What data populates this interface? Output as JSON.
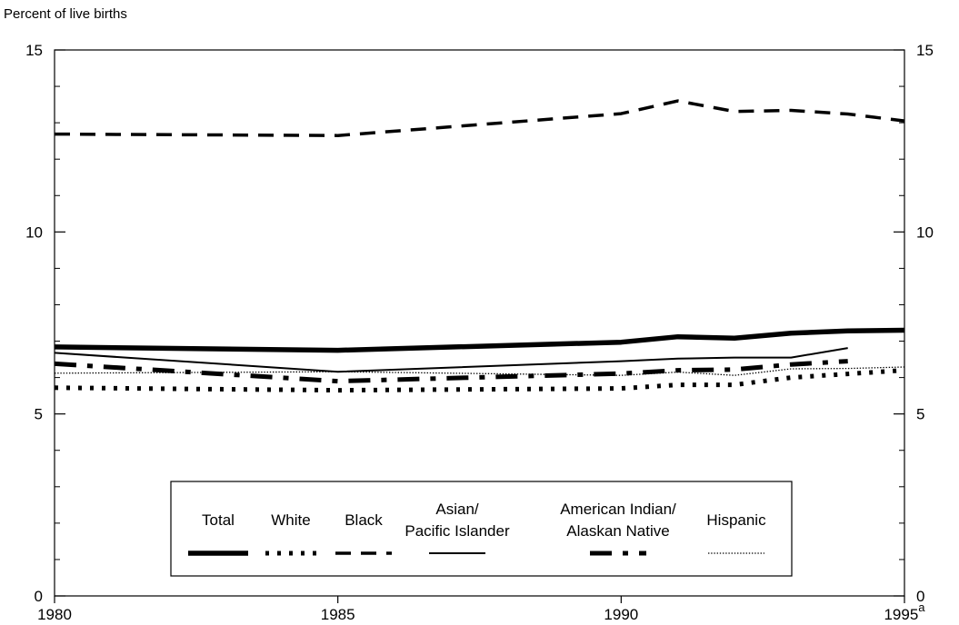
{
  "chart_data": {
    "type": "line",
    "title": "",
    "ylabel": "Percent of live births",
    "xlabel": "",
    "xlim": [
      1980,
      1995
    ],
    "ylim": [
      0,
      15
    ],
    "x_ticks": [
      {
        "value": 1980,
        "label": "1980"
      },
      {
        "value": 1985,
        "label": "1985"
      },
      {
        "value": 1990,
        "label": "1990"
      },
      {
        "value": 1995,
        "label": "1995",
        "superscript": "a"
      }
    ],
    "y_ticks": [
      {
        "value": 0,
        "label": "0"
      },
      {
        "value": 5,
        "label": "5"
      },
      {
        "value": 10,
        "label": "10"
      },
      {
        "value": 15,
        "label": "15"
      }
    ],
    "grid": false,
    "legend_position": "bottom-center",
    "series": [
      {
        "name": "Total",
        "style": "thick-solid",
        "points": [
          [
            1980,
            6.84
          ],
          [
            1985,
            6.75
          ],
          [
            1990,
            6.97
          ],
          [
            1991,
            7.12
          ],
          [
            1992,
            7.08
          ],
          [
            1993,
            7.22
          ],
          [
            1994,
            7.28
          ],
          [
            1995,
            7.3
          ]
        ]
      },
      {
        "name": "White",
        "style": "dotted-thick",
        "points": [
          [
            1980,
            5.72
          ],
          [
            1985,
            5.65
          ],
          [
            1990,
            5.7
          ],
          [
            1991,
            5.8
          ],
          [
            1992,
            5.8
          ],
          [
            1993,
            6.0
          ],
          [
            1994,
            6.1
          ],
          [
            1995,
            6.2
          ]
        ]
      },
      {
        "name": "Black",
        "style": "dashed",
        "points": [
          [
            1980,
            12.69
          ],
          [
            1985,
            12.65
          ],
          [
            1990,
            13.25
          ],
          [
            1991,
            13.6
          ],
          [
            1992,
            13.31
          ],
          [
            1993,
            13.34
          ],
          [
            1994,
            13.24
          ],
          [
            1995,
            13.05
          ]
        ]
      },
      {
        "name": "Asian/\nPacific Islander",
        "style": "thin-solid",
        "points": [
          [
            1980,
            6.68
          ],
          [
            1985,
            6.16
          ],
          [
            1990,
            6.45
          ],
          [
            1991,
            6.52
          ],
          [
            1992,
            6.55
          ],
          [
            1993,
            6.55
          ],
          [
            1994,
            6.81
          ]
        ]
      },
      {
        "name": "American Indian/\nAlaskan Native",
        "style": "dash-dot-thick",
        "points": [
          [
            1980,
            6.38
          ],
          [
            1985,
            5.9
          ],
          [
            1990,
            6.11
          ],
          [
            1991,
            6.2
          ],
          [
            1992,
            6.22
          ],
          [
            1993,
            6.36
          ],
          [
            1994,
            6.45
          ]
        ]
      },
      {
        "name": "Hispanic",
        "style": "fine-dotted",
        "points": [
          [
            1980,
            6.12
          ],
          [
            1985,
            6.16
          ],
          [
            1990,
            6.06
          ],
          [
            1991,
            6.15
          ],
          [
            1992,
            6.06
          ],
          [
            1993,
            6.24
          ],
          [
            1994,
            6.25
          ],
          [
            1995,
            6.29
          ]
        ]
      }
    ]
  }
}
